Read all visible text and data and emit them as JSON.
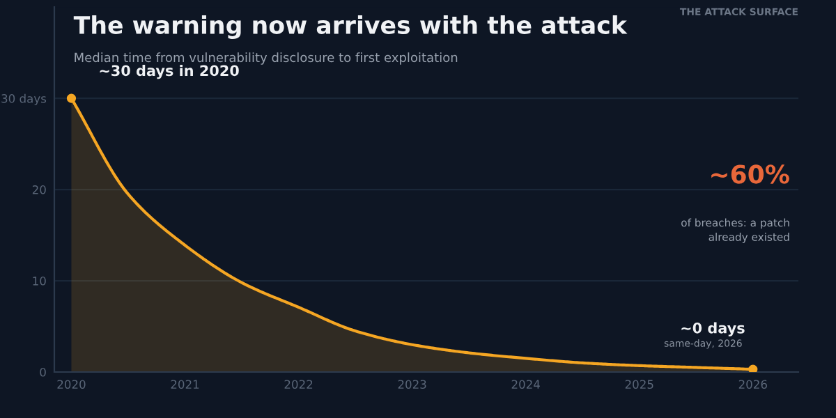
{
  "chart_data": {
    "type": "area",
    "title": "The warning now arrives with the attack",
    "subtitle": "Median time from vulnerability disclosure to first exploitation",
    "series": [
      {
        "color": "#f5a623",
        "marker": "none",
        "x": [
          2020,
          2020.5,
          2021,
          2021.5,
          2022,
          2022.5,
          2023,
          2023.5,
          2024,
          2024.5,
          2025,
          2025.5,
          2026
        ],
        "values": [
          30,
          19.5,
          13.9,
          9.8,
          7.1,
          4.5,
          3.0,
          2.1,
          1.5,
          1.0,
          0.7,
          0.5,
          0.3
        ]
      },
      {
        "type": "scatter",
        "marker": "circle",
        "color": "#f5a623",
        "x": [
          2020,
          2026
        ],
        "values": [
          30,
          0.3
        ]
      }
    ],
    "annotations": [
      "THE ATTACK SURFACE",
      {
        "text": "~30 days in 2020",
        "x": 2020,
        "y": 30
      },
      {
        "text": "~0 days",
        "x": 2026,
        "y": 0.3
      },
      "same-day, 2026",
      "~60%",
      "of breaches: a patch\nalready existed"
    ],
    "xlim": [
      2019.85,
      2026.4
    ],
    "xticks": [
      2020,
      2021,
      2022,
      2023,
      2024,
      2025,
      2026
    ],
    "ylim": [
      0,
      40
    ],
    "yticks": [
      0,
      10,
      20,
      {
        "value": 30,
        "label": "30 days"
      }
    ],
    "grid": "y",
    "line_style": "solid",
    "legend": false
  }
}
